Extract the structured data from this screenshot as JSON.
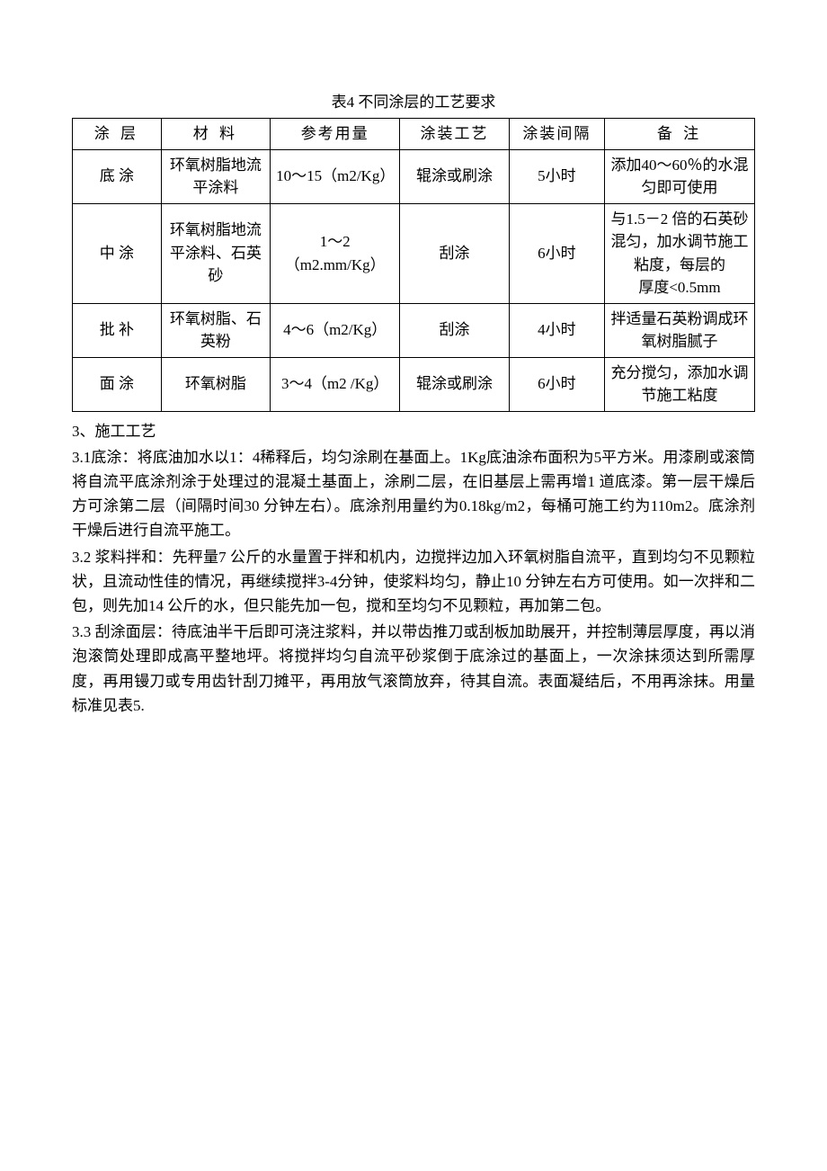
{
  "tableTitle": "表4 不同涂层的工艺要求",
  "headers": {
    "layer": "涂 层",
    "material": "材 料",
    "usage": "参考用量",
    "process": "涂装工艺",
    "interval": "涂装间隔",
    "note": "备 注"
  },
  "rows": [
    {
      "layer": "底 涂",
      "material": "环氧树脂地流平涂料",
      "usage": "10～15（m2/Kg）",
      "process": "辊涂或刷涂",
      "interval": "5小时",
      "note": "添加40～60％的水混匀即可使用"
    },
    {
      "layer": "中 涂",
      "material": "环氧树脂地流平涂料、石英砂",
      "usage": "1～2（m2.mm/Kg）",
      "process": "刮涂",
      "interval": "6小时",
      "note": "与1.5－2 倍的石英砂混匀，加水调节施工粘度，每层的\n厚度<0.5mm"
    },
    {
      "layer": "批 补",
      "material": "环氧树脂、石英粉",
      "usage": "4～6（m2/Kg）",
      "process": "刮涂",
      "interval": "4小时",
      "note": "拌适量石英粉调成环氧树脂腻子"
    },
    {
      "layer": "面 涂",
      "material": "环氧树脂",
      "usage": "3～4（m2 /Kg）",
      "process": "辊涂或刷涂",
      "interval": "6小时",
      "note": "充分搅匀，添加水调节施工粘度"
    }
  ],
  "paragraphs": {
    "p1": "3、施工工艺",
    "p2": "3.1底涂：将底油加水以1：4稀释后，均匀涂刷在基面上。1Kg底油涂布面积为5平方米。用漆刷或滚筒将自流平底涂剂涂于处理过的混凝土基面上，涂刷二层，在旧基层上需再增1 道底漆。第一层干燥后方可涂第二层（间隔时间30 分钟左右）。底涂剂用量约为0.18kg/m2，每桶可施工约为110m2。底涂剂干燥后进行自流平施工。",
    "p3": "3.2 浆料拌和：先秤量7 公斤的水量置于拌和机内，边搅拌边加入环氧树脂自流平，直到均匀不见颗粒状，且流动性佳的情况，再继续搅拌3-4分钟，使浆料均匀，静止10 分钟左右方可使用。如一次拌和二包，则先加14 公斤的水，但只能先加一包，搅和至均匀不见颗粒，再加第二包。",
    "p4": "3.3 刮涂面层：待底油半干后即可浇注浆料，并以带齿推刀或刮板加助展开，并控制薄层厚度，再以消泡滚筒处理即成高平整地坪。将搅拌均匀自流平砂浆倒于底涂过的基面上，一次涂抹须达到所需厚度，再用镘刀或专用齿针刮刀摊平，再用放气滚筒放弃，待其自流。表面凝结后，不用再涂抹。用量标准见表5."
  }
}
